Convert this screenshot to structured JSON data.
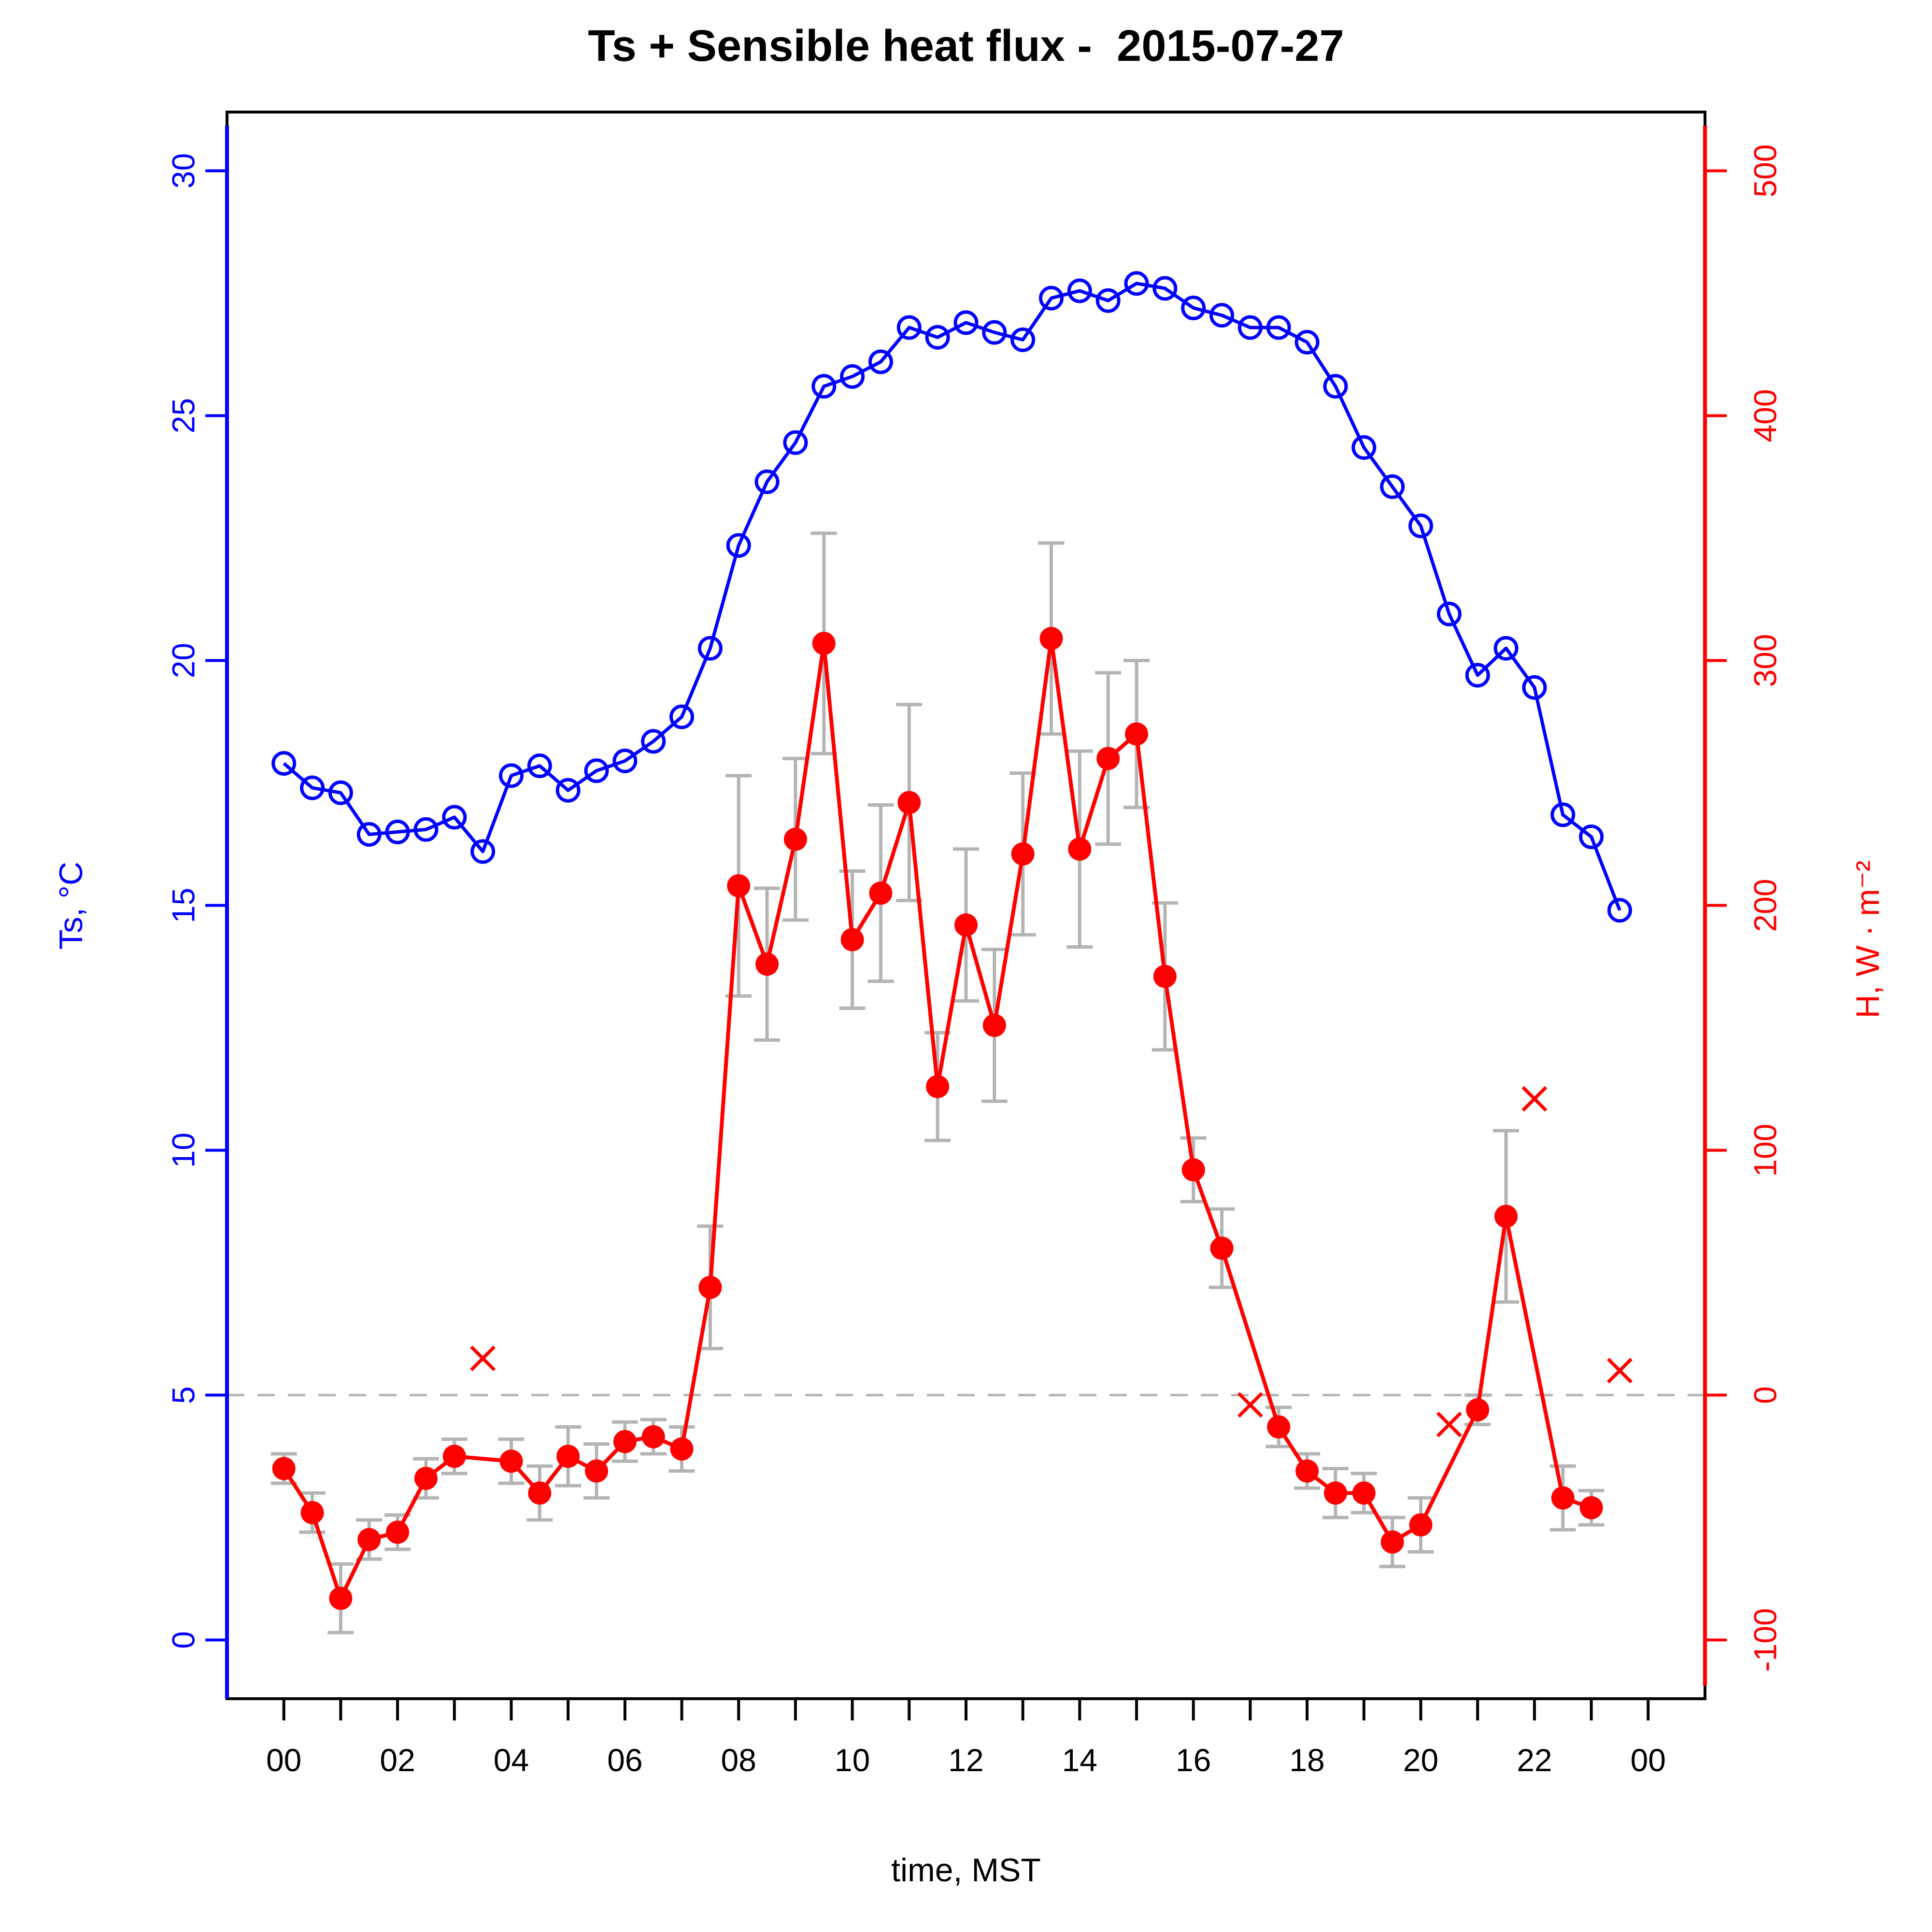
{
  "page": {
    "background": "#ffffff"
  },
  "chart_data": {
    "type": "line",
    "title": "Ts + Sensible heat flux -  2015-07-27",
    "xlabel": "time, MST",
    "x_range": [
      -1,
      25
    ],
    "x_hour_ticks_every": 1,
    "x_major_tick_labels": [
      {
        "h": 0,
        "label": "00"
      },
      {
        "h": 2,
        "label": "02"
      },
      {
        "h": 4,
        "label": "04"
      },
      {
        "h": 6,
        "label": "06"
      },
      {
        "h": 8,
        "label": "08"
      },
      {
        "h": 10,
        "label": "10"
      },
      {
        "h": 12,
        "label": "12"
      },
      {
        "h": 14,
        "label": "14"
      },
      {
        "h": 16,
        "label": "16"
      },
      {
        "h": 18,
        "label": "18"
      },
      {
        "h": 20,
        "label": "20"
      },
      {
        "h": 22,
        "label": "22"
      },
      {
        "h": 24,
        "label": "00"
      }
    ],
    "left_axis": {
      "label": "Ts, °C",
      "color": "#0000ff",
      "ticks": [
        0,
        5,
        10,
        15,
        20,
        25,
        30
      ],
      "range": [
        -1.2,
        31.2
      ]
    },
    "right_axis": {
      "label": "H, W · m⁻²",
      "color": "#ff0000",
      "ticks": [
        -100,
        0,
        100,
        200,
        300,
        400,
        500
      ],
      "range": [
        -124,
        524
      ]
    },
    "reference_line": {
      "right_axis_value": 0,
      "style": "dashed",
      "color": "#b4b4b4"
    },
    "grid": "off",
    "legend": "none",
    "x_hours": [
      0,
      0.5,
      1,
      1.5,
      2,
      2.5,
      3,
      3.5,
      4,
      4.5,
      5,
      5.5,
      6,
      6.5,
      7,
      7.5,
      8,
      8.5,
      9,
      9.5,
      10,
      10.5,
      11,
      11.5,
      12,
      12.5,
      13,
      13.5,
      14,
      14.5,
      15,
      15.5,
      16,
      16.5,
      17,
      17.5,
      18,
      18.5,
      19,
      19.5,
      20,
      20.5,
      21,
      21.5,
      22,
      22.5,
      23,
      23.5
    ],
    "series": [
      {
        "name": "Ts",
        "axis": "left",
        "marker": "open-circle",
        "color": "#0000ff",
        "values": [
          17.9,
          17.4,
          17.3,
          16.45,
          16.5,
          16.55,
          16.8,
          16.1,
          17.65,
          17.85,
          17.35,
          17.75,
          17.95,
          18.35,
          18.85,
          20.25,
          22.35,
          23.65,
          24.45,
          25.6,
          25.8,
          26.1,
          26.8,
          26.6,
          26.9,
          26.7,
          26.55,
          27.4,
          27.55,
          27.35,
          27.7,
          27.6,
          27.2,
          27.05,
          26.8,
          26.8,
          26.5,
          25.6,
          24.35,
          23.55,
          22.75,
          20.95,
          19.7,
          20.25,
          19.45,
          16.85,
          16.4,
          14.9
        ]
      },
      {
        "name": "H",
        "axis": "right",
        "marker": "filled-circle",
        "color": "#ff0000",
        "error_bar_color": "#b4b4b4",
        "values": [
          -30,
          -48,
          -83,
          -59,
          -56,
          -34,
          -25,
          null,
          -27,
          -40,
          -25,
          -31,
          -19,
          -17,
          -22,
          44,
          208,
          176,
          227,
          307,
          186,
          205,
          242,
          126,
          192,
          151,
          221,
          309,
          223,
          260,
          270,
          171,
          92,
          60,
          null,
          -13,
          -31,
          -40,
          -40,
          -60,
          -53,
          null,
          -6,
          73,
          null,
          -42,
          -46,
          null
        ],
        "errors": [
          6,
          8,
          14,
          8,
          7,
          8,
          7,
          null,
          9,
          11,
          12,
          11,
          8,
          7,
          9,
          25,
          45,
          31,
          33,
          45,
          28,
          36,
          40,
          22,
          31,
          31,
          33,
          39,
          40,
          35,
          30,
          30,
          13,
          16,
          null,
          8,
          7,
          10,
          8,
          10,
          11,
          null,
          6,
          35,
          null,
          13,
          7,
          null
        ],
        "flagged_points": [
          {
            "h": 3.5,
            "value": 15
          },
          {
            "h": 17,
            "value": -4
          },
          {
            "h": 20.5,
            "value": -12
          },
          {
            "h": 22,
            "value": 121
          },
          {
            "h": 23.5,
            "value": 10
          }
        ],
        "flagged_marker": "x-cross"
      }
    ]
  }
}
